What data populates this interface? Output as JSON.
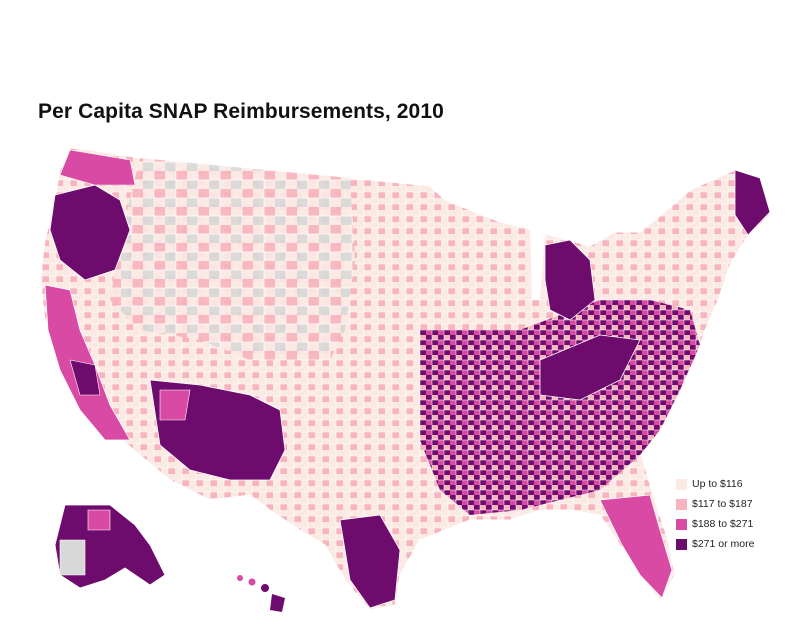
{
  "title": "Per Capita SNAP Reimbursements, 2010",
  "colors": {
    "low": "#fbe9e4",
    "lowmid": "#f7b3be",
    "highmid": "#d84aa3",
    "high": "#6e0c6e",
    "nodata": "#d8d8d8",
    "border": "#ffffff"
  },
  "legend": [
    {
      "label": "Up to $116",
      "color": "#fbe9e4"
    },
    {
      "label": "$117 to $187",
      "color": "#f7b3be"
    },
    {
      "label": "$188 to $271",
      "color": "#d84aa3"
    },
    {
      "label": "$271 or more",
      "color": "#6e0c6e"
    }
  ]
}
